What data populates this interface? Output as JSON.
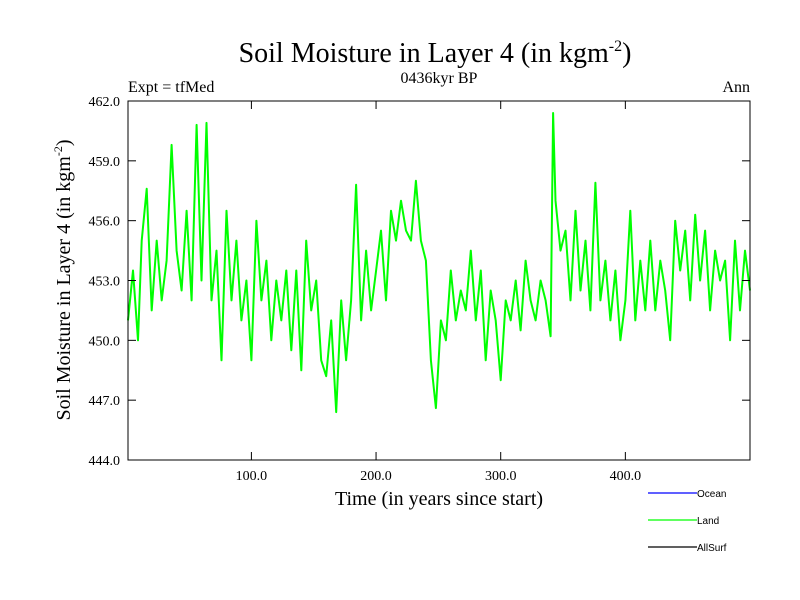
{
  "header": {
    "title_main": "Soil Moisture in Layer 4 (in kgm",
    "title_sup": "-2",
    "title_close": ")",
    "subtitle": "0436kyr BP",
    "left_label": "Expt = tfMed",
    "right_label": "Ann"
  },
  "axes": {
    "xlabel": "Time (in years since start)",
    "ylabel_main": "Soil Moisture in Layer 4 (in kgm",
    "ylabel_sup": "-2",
    "ylabel_close": ")"
  },
  "legend": [
    {
      "name": "Ocean",
      "color": "#0000ff"
    },
    {
      "name": "Land",
      "color": "#00ff00"
    },
    {
      "name": "AllSurf",
      "color": "#000000"
    }
  ],
  "chart_data": {
    "type": "line",
    "xlim": [
      1,
      500
    ],
    "ylim": [
      444.0,
      462.0
    ],
    "x_ticks": [
      {
        "value": 100,
        "label": "100.0"
      },
      {
        "value": 200,
        "label": "200.0"
      },
      {
        "value": 300,
        "label": "300.0"
      },
      {
        "value": 400,
        "label": "400.0"
      }
    ],
    "y_ticks": [
      {
        "value": 444.0,
        "label": "444.0"
      },
      {
        "value": 447.0,
        "label": "447.0"
      },
      {
        "value": 450.0,
        "label": "450.0"
      },
      {
        "value": 453.0,
        "label": "453.0"
      },
      {
        "value": 456.0,
        "label": "456.0"
      },
      {
        "value": 459.0,
        "label": "459.0"
      },
      {
        "value": 462.0,
        "label": "462.0"
      }
    ],
    "series": [
      {
        "name": "Land",
        "color": "#00ff00",
        "x": [
          1,
          5,
          9,
          12,
          16,
          20,
          24,
          28,
          32,
          36,
          40,
          44,
          48,
          52,
          56,
          60,
          64,
          68,
          72,
          76,
          80,
          84,
          88,
          92,
          96,
          100,
          104,
          108,
          112,
          116,
          120,
          124,
          128,
          132,
          136,
          140,
          144,
          148,
          152,
          156,
          160,
          164,
          168,
          172,
          176,
          180,
          184,
          188,
          192,
          196,
          200,
          204,
          208,
          212,
          216,
          220,
          224,
          228,
          232,
          236,
          240,
          244,
          248,
          252,
          256,
          260,
          264,
          268,
          272,
          276,
          280,
          284,
          288,
          292,
          296,
          300,
          304,
          308,
          312,
          316,
          320,
          324,
          328,
          332,
          336,
          340,
          342,
          344,
          348,
          352,
          356,
          360,
          364,
          368,
          372,
          376,
          380,
          384,
          388,
          392,
          396,
          400,
          404,
          408,
          412,
          416,
          420,
          424,
          428,
          432,
          436,
          440,
          444,
          448,
          452,
          456,
          460,
          464,
          468,
          472,
          476,
          480,
          484,
          488,
          492,
          496,
          500
        ],
        "values": [
          451.0,
          453.5,
          450.0,
          455.0,
          457.6,
          451.5,
          455.0,
          452.0,
          454.0,
          459.8,
          454.5,
          452.5,
          456.5,
          452.0,
          460.8,
          453.0,
          460.9,
          452.0,
          454.5,
          449.0,
          456.5,
          452.0,
          455.0,
          451.0,
          453.0,
          449.0,
          456.0,
          452.0,
          454.0,
          450.0,
          453.0,
          451.0,
          453.5,
          449.5,
          453.5,
          448.5,
          455.0,
          451.5,
          453.0,
          449.0,
          448.2,
          451.0,
          446.4,
          452.0,
          449.0,
          452.0,
          457.8,
          451.0,
          454.5,
          451.5,
          453.5,
          455.5,
          452.0,
          456.5,
          455.0,
          457.0,
          455.5,
          455.0,
          458.0,
          455.0,
          454.0,
          449.0,
          446.6,
          451.0,
          450.0,
          453.5,
          451.0,
          452.5,
          451.5,
          454.5,
          451.0,
          453.5,
          449.0,
          452.5,
          451.0,
          448.0,
          452.0,
          451.0,
          453.0,
          450.5,
          454.0,
          452.0,
          451.0,
          453.0,
          452.0,
          450.2,
          461.4,
          457.0,
          454.5,
          455.5,
          452.0,
          456.5,
          452.5,
          455.0,
          451.5,
          457.9,
          452.0,
          454.0,
          451.0,
          453.5,
          450.0,
          452.0,
          456.5,
          451.0,
          454.0,
          451.5,
          455.0,
          451.5,
          454.0,
          452.5,
          450.0,
          456.0,
          453.5,
          455.5,
          452.0,
          456.3,
          453.0,
          455.5,
          451.5,
          454.5,
          453.0,
          454.0,
          450.0,
          455.0,
          451.5,
          454.5,
          452.5
        ]
      }
    ]
  }
}
